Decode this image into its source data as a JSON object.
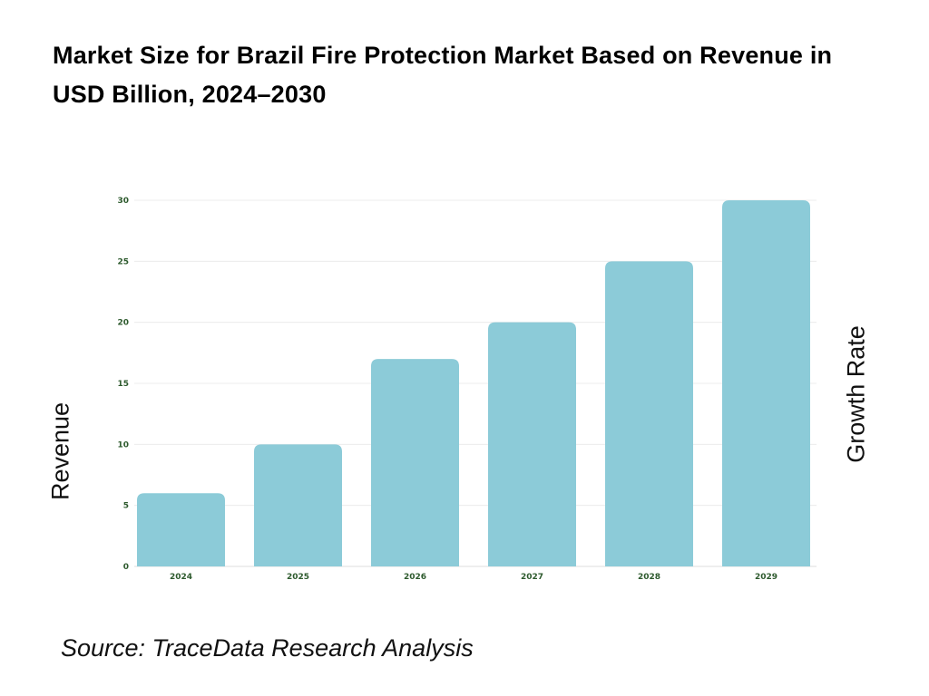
{
  "title": "Market Size for Brazil Fire Protection Market Based on Revenue in USD Billion, 2024–2030",
  "source": "Source: TraceData Research Analysis",
  "chart_data": {
    "type": "bar",
    "title": "Market Size for Brazil Fire Protection Market Based on Revenue in USD Billion, 2024–2030",
    "categories": [
      "2024",
      "2025",
      "2026",
      "2027",
      "2028",
      "2029"
    ],
    "values": [
      6,
      10,
      17,
      20,
      25,
      30
    ],
    "ylabel": "Revenue",
    "y2label": "Growth Rate",
    "xlabel": "",
    "ylim": [
      0,
      30
    ],
    "yticks": [
      "0",
      "5",
      "10",
      "15",
      "20",
      "25",
      "30"
    ],
    "grid": true,
    "bar_color": "#8ccbd8",
    "tick_color": "#2d5a2d"
  }
}
